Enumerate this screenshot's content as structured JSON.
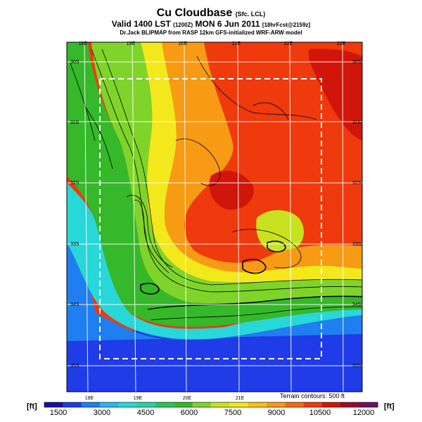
{
  "header": {
    "title": "Cu Cloudbase",
    "title_suffix": "(Sfc. LCL)",
    "valid_line": "Valid 1400 LST",
    "valid_code": "(1200Z)",
    "valid_date": "MON 6 Jun 2011",
    "forecast_tag": "[18hrFcst@2159z]",
    "subtitle": "Dr.Jack BLIPMAP from RASP 12km GFS-initialized WRF-ARW model"
  },
  "map": {
    "lon_labels_top": [
      "18E",
      "19E",
      "20E",
      "21E",
      "22E",
      "23E"
    ],
    "lon_labels_bottom": [
      "18E",
      "19E",
      "20E",
      "21E"
    ],
    "lat_labels": [
      "30S",
      "31S",
      "32S",
      "33S",
      "34S",
      "35S"
    ],
    "terrain_note": "Terrain contours: 500 ft",
    "colors": {
      "ocean_deep": "#1a3fe0",
      "low": "#2bd3d8",
      "mid": "#2cb34a",
      "high": "#f2e21c",
      "very_high": "#f04a14"
    }
  },
  "colorbar": {
    "unit_left": "[ft]",
    "unit_right": "[ft]",
    "tick_labels": [
      "1500",
      "3000",
      "4500",
      "6000",
      "7500",
      "9000",
      "10500",
      "12000"
    ],
    "colors": [
      "#1c0ca6",
      "#1f3ce8",
      "#1f7ef0",
      "#2bb4f0",
      "#28d7d7",
      "#2ad0a0",
      "#29c45a",
      "#35b82a",
      "#7fd42a",
      "#c8e21f",
      "#f2e81c",
      "#f7c018",
      "#f79a14",
      "#f46a10",
      "#ee3a0c",
      "#d0160a",
      "#a0082a",
      "#701060"
    ]
  }
}
